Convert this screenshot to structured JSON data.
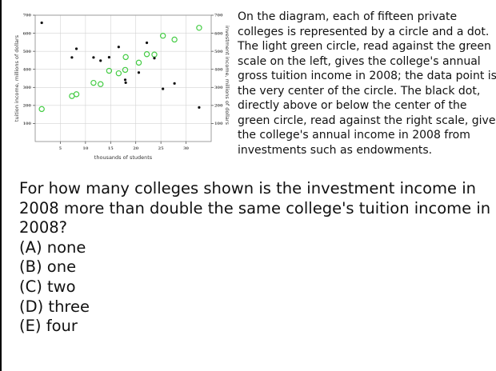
{
  "chart_data": {
    "type": "scatter",
    "xlabel": "thousands of students",
    "ylabel_left": "tuition income, millions of dollars",
    "ylabel_right": "investment income, millions of dollars",
    "xlim": [
      0,
      35
    ],
    "ylim": [
      0,
      700
    ],
    "x_ticks": [
      5,
      10,
      15,
      20,
      25,
      30
    ],
    "x_tick_labels": [
      "5",
      "10",
      "15",
      "20",
      "25",
      "30"
    ],
    "y_ticks": [
      100,
      200,
      300,
      400,
      500,
      600,
      700
    ],
    "y_tick_labels": [
      "100",
      "200",
      "300",
      "400",
      "500",
      "600",
      "700"
    ],
    "grid": true,
    "series": [
      {
        "name": "tuition income (light green circle, left scale)",
        "color": "#44cc44",
        "marker": "open-circle",
        "points": [
          [
            1.3,
            180
          ],
          [
            7.3,
            252
          ],
          [
            8.2,
            262
          ],
          [
            11.6,
            325
          ],
          [
            13.0,
            318
          ],
          [
            14.7,
            392
          ],
          [
            16.6,
            378
          ],
          [
            17.9,
            397
          ],
          [
            18.0,
            468
          ],
          [
            20.6,
            437
          ],
          [
            22.2,
            484
          ],
          [
            23.7,
            482
          ],
          [
            25.4,
            586
          ],
          [
            27.7,
            565
          ],
          [
            32.6,
            630
          ]
        ]
      },
      {
        "name": "investment income (black dot, right scale)",
        "color": "#111111",
        "marker": "dot",
        "points": [
          [
            1.3,
            658
          ],
          [
            7.3,
            466
          ],
          [
            8.2,
            514
          ],
          [
            11.6,
            466
          ],
          [
            13.0,
            448
          ],
          [
            14.7,
            467
          ],
          [
            16.6,
            524
          ],
          [
            17.9,
            342
          ],
          [
            18.0,
            326
          ],
          [
            20.6,
            382
          ],
          [
            22.2,
            547
          ],
          [
            23.7,
            462
          ],
          [
            25.4,
            292
          ],
          [
            27.7,
            322
          ],
          [
            32.6,
            189
          ]
        ]
      }
    ]
  },
  "description_lines": [
    "On the diagram, each of fifteen private",
    "colleges is represented by a circle and a dot.",
    "The light green circle, read against the green",
    "scale on the left, gives the college's annual",
    "gross tuition income in 2008; the data point is",
    "the very center of the circle. The black dot,",
    "directly above or below the center of the",
    "green circle, read against the right scale, gives",
    "the college's annual income in 2008 from",
    "investments such as endowments."
  ],
  "question_lines": [
    "For how many colleges shown is the investment income in",
    "2008 more than double the same college's tuition income in",
    "2008?"
  ],
  "options": [
    "(A) none",
    "(B) one",
    "(C) two",
    "(D) three",
    "(E) four"
  ]
}
